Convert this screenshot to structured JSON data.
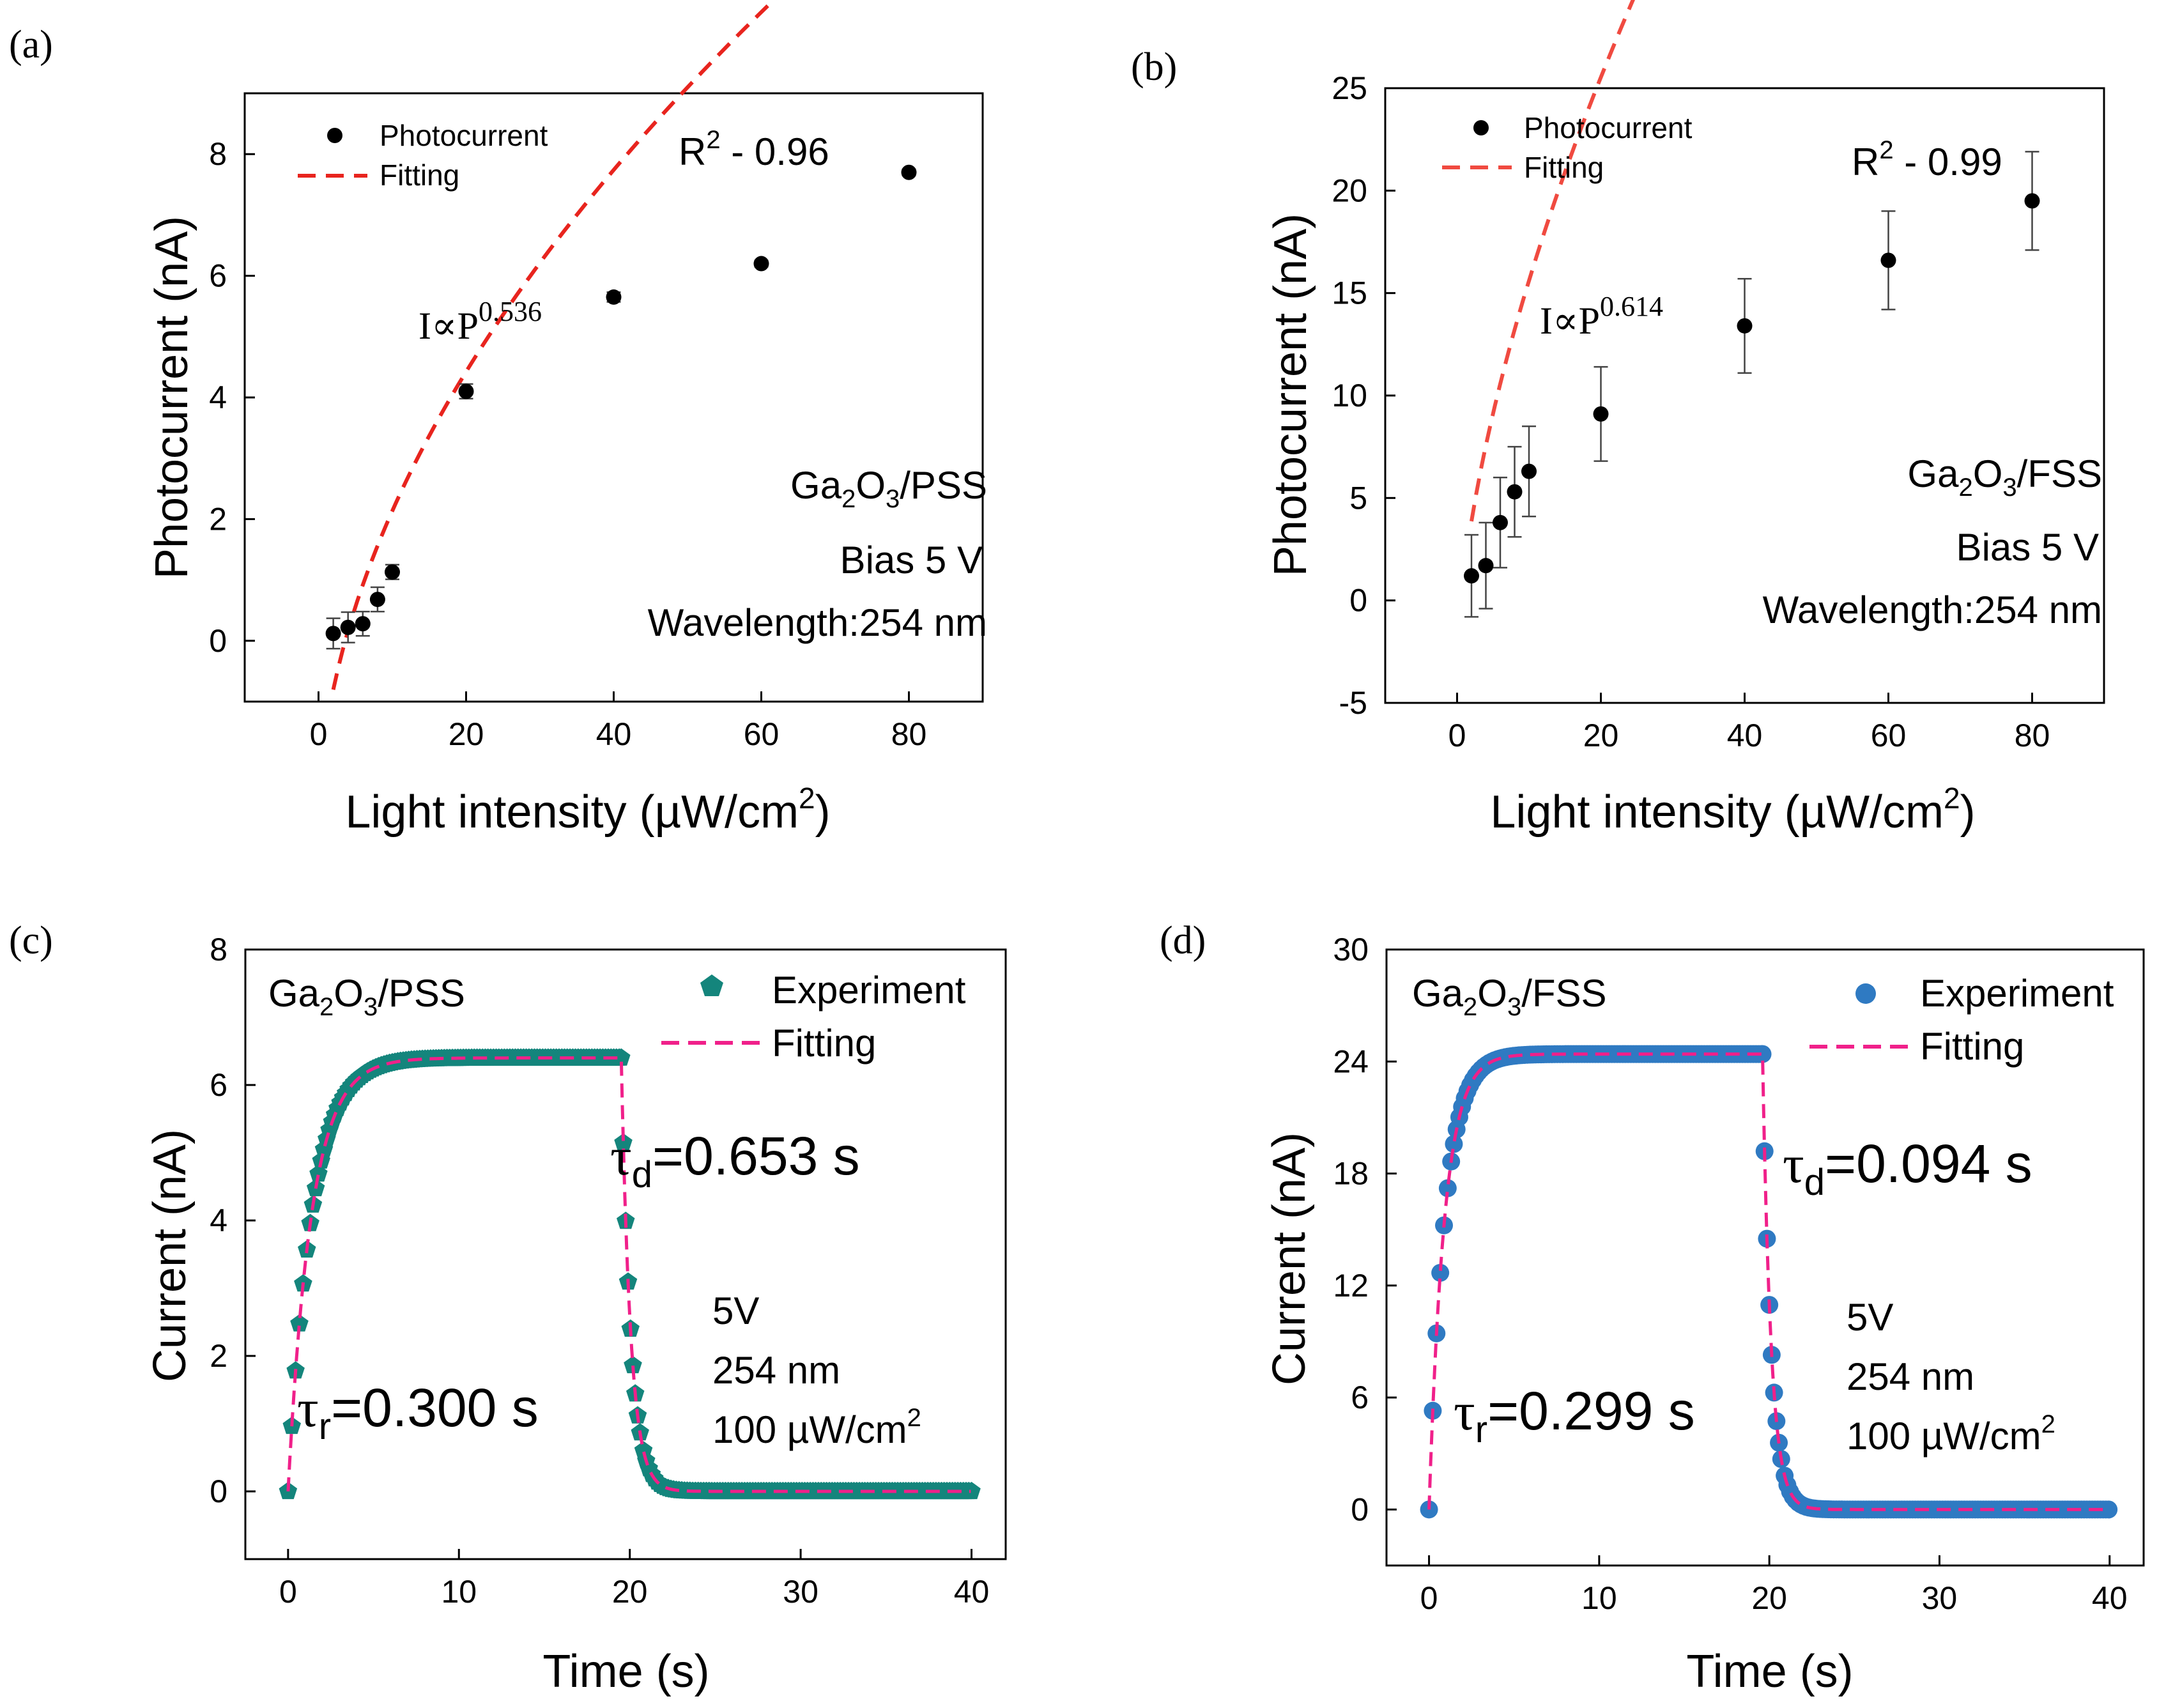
{
  "chart_data": [
    {
      "panel": "(a)",
      "type": "scatter",
      "xlabel": "Light intensity (µW/cm",
      "xlabel_sup": "2",
      "xlabel_end": ")",
      "ylabel": "Photocurrent (nA)",
      "xlim": [
        -10,
        90
      ],
      "ylim": [
        -1,
        9
      ],
      "xticks": [
        0,
        20,
        40,
        60,
        80
      ],
      "yticks": [
        0,
        2,
        4,
        6,
        8
      ],
      "series": [
        {
          "name": "Photocurrent",
          "style": "point",
          "color": "#000000",
          "x": [
            2,
            4,
            6,
            8,
            10,
            20,
            40,
            60,
            80
          ],
          "y": [
            0.12,
            0.22,
            0.28,
            0.68,
            1.13,
            4.1,
            5.65,
            6.2,
            7.7
          ],
          "err": [
            0.25,
            0.25,
            0.2,
            0.2,
            0.12,
            0.12,
            0.08,
            0.05,
            0.05
          ]
        },
        {
          "name": "Fitting",
          "style": "dashed",
          "color": "#e8241e",
          "model": "power",
          "a": -2.95,
          "b": 1.48,
          "exponent": 0.536,
          "x_range": [
            2,
            80
          ]
        }
      ],
      "annotations": {
        "r2_prefix": "R",
        "r2_sup": "2",
        "r2_value": " - 0.96",
        "law_prefix": "I∝P",
        "law_exp": "0.536",
        "material_a": "Ga",
        "material_sub1": "2",
        "material_b": "O",
        "material_sub2": "3",
        "material_c": "/PSS",
        "bias": "Bias 5 V",
        "wavelength": "Wavelength:254 nm"
      }
    },
    {
      "panel": "(b)",
      "type": "scatter",
      "xlabel": "Light intensity (µW/cm",
      "xlabel_sup": "2",
      "xlabel_end": ")",
      "ylabel": "Photocurrent (nA)",
      "xlim": [
        -10,
        90
      ],
      "ylim": [
        -5,
        25
      ],
      "xticks": [
        0,
        20,
        40,
        60,
        80
      ],
      "yticks": [
        -5,
        0,
        5,
        10,
        15,
        20,
        25
      ],
      "series": [
        {
          "name": "Photocurrent",
          "style": "point",
          "color": "#000000",
          "x": [
            2,
            4,
            6,
            8,
            10,
            20,
            40,
            60,
            80
          ],
          "y": [
            1.2,
            1.7,
            3.8,
            5.3,
            6.3,
            9.1,
            13.4,
            16.6,
            19.5
          ],
          "err": [
            2.0,
            2.1,
            2.2,
            2.2,
            2.2,
            2.3,
            2.3,
            2.4,
            2.4
          ]
        },
        {
          "name": "Fitting",
          "style": "dashed",
          "color": "#f04a40",
          "model": "power",
          "a": -3.1,
          "b": 4.55,
          "exponent": 0.614,
          "x_range": [
            2,
            80
          ]
        }
      ],
      "annotations": {
        "r2_prefix": "R",
        "r2_sup": "2",
        "r2_value": " - 0.99",
        "law_prefix": "I∝P",
        "law_exp": "0.614",
        "material_a": "Ga",
        "material_sub1": "2",
        "material_b": "O",
        "material_sub2": "3",
        "material_c": "/FSS",
        "bias": "Bias 5 V",
        "wavelength": "Wavelength:254 nm"
      }
    },
    {
      "panel": "(c)",
      "type": "scatter",
      "xlabel": "Time (s)",
      "ylabel": "Current (nA)",
      "xlim": [
        -2.5,
        42
      ],
      "ylim": [
        -1,
        8
      ],
      "xticks": [
        0,
        10,
        20,
        30,
        40
      ],
      "yticks": [
        0,
        2,
        4,
        6,
        8
      ],
      "series": [
        {
          "name": "Experiment",
          "style": "pentagon",
          "color": "#14857c",
          "i_max": 6.4,
          "tau_rise": 1.35,
          "t_on": 0,
          "t_off": 19.5,
          "tau_decay": 0.55,
          "x_range": [
            0,
            40
          ]
        },
        {
          "name": "Fitting",
          "style": "dashed",
          "color": "#f0208a"
        }
      ],
      "annotations": {
        "material_a": "Ga",
        "material_sub1": "2",
        "material_b": "O",
        "material_sub2": "3",
        "material_c": "/PSS",
        "tau_d_sym": "τ",
        "tau_d_sub": "d",
        "tau_d_val": "=0.653 s",
        "tau_r_sym": "τ",
        "tau_r_sub": "r",
        "tau_r_val": "=0.300 s",
        "bias": "5V",
        "wavelength": "254 nm",
        "power": "100 µW/cm",
        "power_sup": "2"
      }
    },
    {
      "panel": "(d)",
      "type": "scatter",
      "xlabel": "Time (s)",
      "ylabel": "Current (nA)",
      "xlim": [
        -2.5,
        42
      ],
      "ylim": [
        -3,
        30
      ],
      "xticks": [
        0,
        10,
        20,
        30,
        40
      ],
      "yticks": [
        0,
        6,
        12,
        18,
        24,
        30
      ],
      "series": [
        {
          "name": "Experiment",
          "style": "circle",
          "color": "#2f7ac2",
          "i_max": 24.4,
          "tau_rise": 0.9,
          "t_on": 0,
          "t_off": 19.6,
          "tau_decay": 0.5,
          "x_range": [
            0,
            40
          ]
        },
        {
          "name": "Fitting",
          "style": "dashed",
          "color": "#f0208a"
        }
      ],
      "annotations": {
        "material_a": "Ga",
        "material_sub1": "2",
        "material_b": "O",
        "material_sub2": "3",
        "material_c": "/FSS",
        "tau_d_sym": "τ",
        "tau_d_sub": "d",
        "tau_d_val": "=0.094 s",
        "tau_r_sym": "τ",
        "tau_r_sub": "r",
        "tau_r_val": "=0.299 s",
        "bias": "5V",
        "wavelength": "254 nm",
        "power": "100 µW/cm",
        "power_sup": "2"
      }
    }
  ]
}
